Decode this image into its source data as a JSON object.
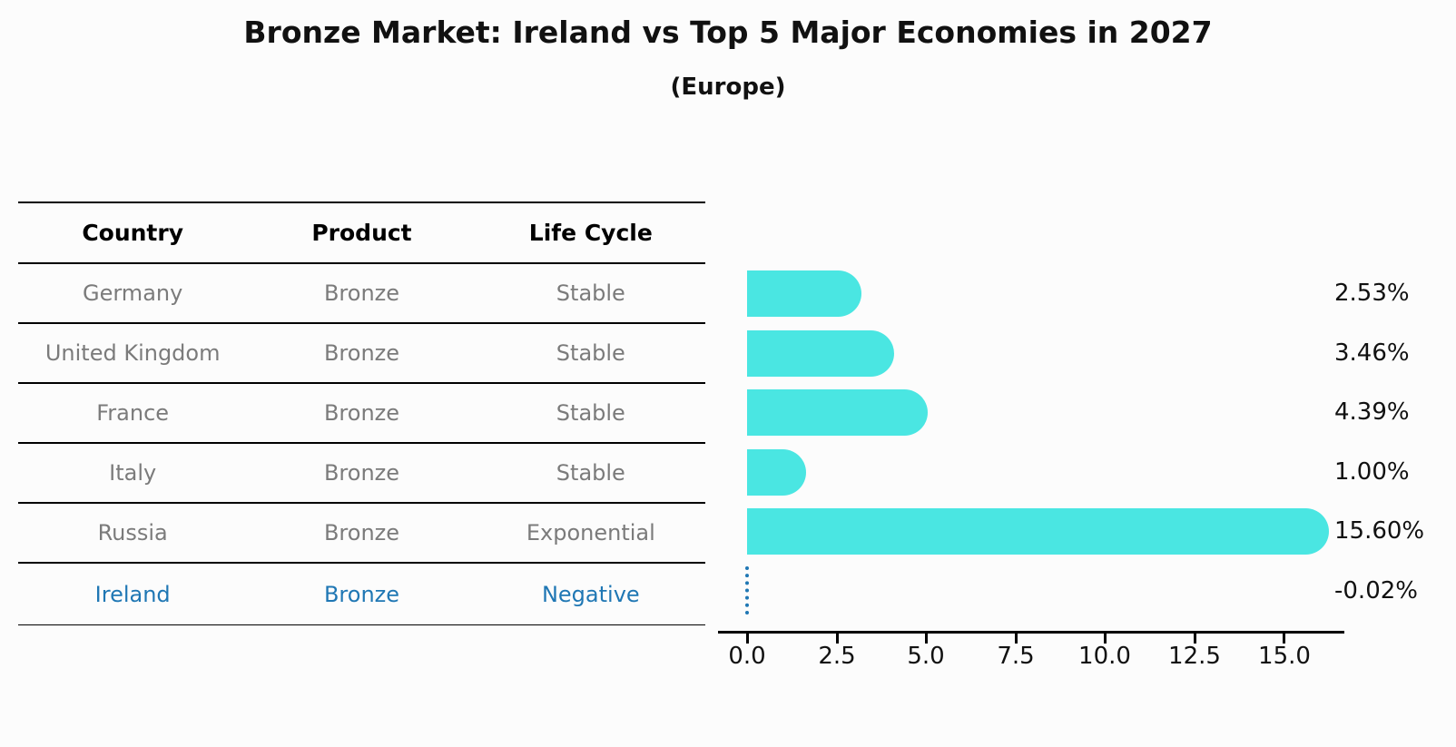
{
  "title": "Bronze Market: Ireland vs Top 5 Major Economies in 2027",
  "subtitle": "(Europe)",
  "table": {
    "headers": [
      "Country",
      "Product",
      "Life Cycle"
    ],
    "rows": [
      {
        "country": "Germany",
        "product": "Bronze",
        "life_cycle": "Stable",
        "highlight": false
      },
      {
        "country": "United Kingdom",
        "product": "Bronze",
        "life_cycle": "Stable",
        "highlight": false
      },
      {
        "country": "France",
        "product": "Bronze",
        "life_cycle": "Stable",
        "highlight": false
      },
      {
        "country": "Italy",
        "product": "Bronze",
        "life_cycle": "Stable",
        "highlight": false
      },
      {
        "country": "Russia",
        "product": "Bronze",
        "life_cycle": "Exponential",
        "highlight": false
      },
      {
        "country": "Ireland",
        "product": "Bronze",
        "life_cycle": "Negative",
        "highlight": true
      }
    ]
  },
  "chart_data": {
    "type": "bar",
    "orientation": "horizontal",
    "title": "Bronze Market: Ireland vs Top 5 Major Economies in 2027",
    "subtitle": "(Europe)",
    "categories": [
      "Germany",
      "United Kingdom",
      "France",
      "Italy",
      "Russia",
      "Ireland"
    ],
    "values": [
      2.53,
      3.46,
      4.39,
      1.0,
      15.6,
      -0.02
    ],
    "value_labels": [
      "2.53%",
      "3.46%",
      "4.39%",
      "1.00%",
      "15.60%",
      "-0.02%"
    ],
    "x_ticks": [
      "0.0",
      "2.5",
      "5.0",
      "7.5",
      "10.0",
      "12.5",
      "15.0"
    ],
    "x_tick_values": [
      0.0,
      2.5,
      5.0,
      7.5,
      10.0,
      12.5,
      15.0
    ],
    "xlim": [
      0,
      16.6
    ],
    "grid": false,
    "legend": false,
    "bar_color": "#4ae6e2",
    "highlight_color": "#1f77b4",
    "negative_marker": "dotted-line-at-zero"
  }
}
